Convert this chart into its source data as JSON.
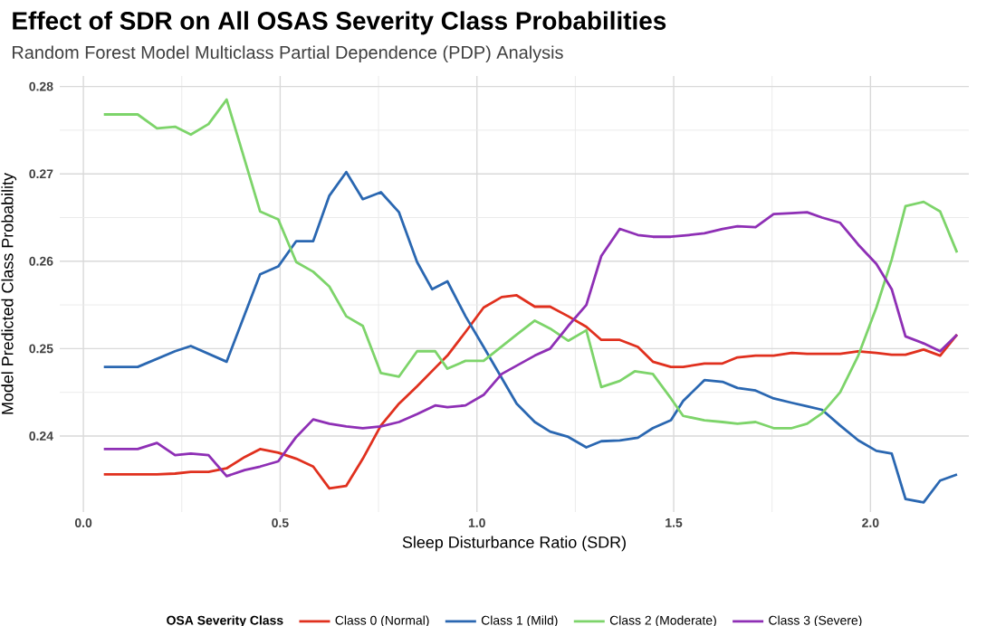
{
  "chart_data": {
    "type": "line",
    "title": "Effect of SDR on All OSAS Severity Class Probabilities",
    "subtitle": "Random Forest Model Multiclass Partial Dependence (PDP) Analysis",
    "xlabel": "Sleep Disturbance Ratio (SDR)",
    "ylabel": "Model Predicted Class Probability",
    "legend_title": "OSA Severity Class",
    "legend": "bottom",
    "grid": true,
    "line_style": "solid",
    "xlim": [
      -0.06,
      2.25
    ],
    "ylim": [
      0.2313,
      0.2812
    ],
    "xticks": [
      {
        "value": 0,
        "label": "0.0"
      },
      {
        "value": 0.5,
        "label": "0.5"
      },
      {
        "value": 1,
        "label": "1.0"
      },
      {
        "value": 1.5,
        "label": "1.5"
      },
      {
        "value": 2,
        "label": "2.0"
      }
    ],
    "yticks": [
      0.24,
      0.25,
      0.26,
      0.27,
      0.28
    ],
    "series": [
      {
        "name": "Class 0 (Normal)",
        "color": "#e0301e",
        "x": [
          0.052,
          0.138,
          0.187,
          0.233,
          0.273,
          0.318,
          0.364,
          0.41,
          0.449,
          0.495,
          0.541,
          0.584,
          0.625,
          0.668,
          0.71,
          0.756,
          0.802,
          0.848,
          0.894,
          0.925,
          0.971,
          1.017,
          1.063,
          1.101,
          1.147,
          1.186,
          1.232,
          1.278,
          1.316,
          1.363,
          1.409,
          1.447,
          1.493,
          1.524,
          1.578,
          1.624,
          1.662,
          1.708,
          1.754,
          1.8,
          1.839,
          1.877,
          1.923,
          1.969,
          2.015,
          2.054,
          2.089,
          2.135,
          2.177,
          2.22
        ],
        "values": [
          0.2356,
          0.2356,
          0.2356,
          0.2357,
          0.2359,
          0.2359,
          0.2363,
          0.2376,
          0.2385,
          0.2381,
          0.2374,
          0.2365,
          0.234,
          0.2343,
          0.2374,
          0.2412,
          0.2437,
          0.2457,
          0.2478,
          0.2492,
          0.2519,
          0.2547,
          0.2559,
          0.2561,
          0.2548,
          0.2548,
          0.2537,
          0.2525,
          0.251,
          0.251,
          0.2502,
          0.2485,
          0.2479,
          0.2479,
          0.2483,
          0.2483,
          0.249,
          0.2492,
          0.2492,
          0.2495,
          0.2494,
          0.2494,
          0.2494,
          0.2497,
          0.2495,
          0.2493,
          0.2493,
          0.2499,
          0.2492,
          0.2516
        ]
      },
      {
        "name": "Class 1 (Mild)",
        "color": "#2a67b1",
        "x": [
          0.052,
          0.138,
          0.233,
          0.273,
          0.364,
          0.449,
          0.495,
          0.541,
          0.584,
          0.625,
          0.668,
          0.71,
          0.756,
          0.802,
          0.848,
          0.886,
          0.925,
          0.971,
          1.017,
          1.101,
          1.147,
          1.186,
          1.232,
          1.278,
          1.316,
          1.363,
          1.409,
          1.447,
          1.493,
          1.524,
          1.578,
          1.624,
          1.662,
          1.708,
          1.754,
          1.8,
          1.839,
          1.877,
          1.923,
          1.969,
          2.015,
          2.054,
          2.089,
          2.135,
          2.177,
          2.22
        ],
        "values": [
          0.2479,
          0.2479,
          0.2497,
          0.2503,
          0.2485,
          0.2585,
          0.2594,
          0.2623,
          0.2623,
          0.2675,
          0.2702,
          0.2671,
          0.2679,
          0.2656,
          0.2599,
          0.2568,
          0.2577,
          0.2537,
          0.2502,
          0.2437,
          0.2416,
          0.2405,
          0.2399,
          0.2387,
          0.2394,
          0.2395,
          0.2398,
          0.2409,
          0.2418,
          0.244,
          0.2464,
          0.2462,
          0.2455,
          0.2452,
          0.2443,
          0.2438,
          0.2434,
          0.243,
          0.2412,
          0.2395,
          0.2383,
          0.238,
          0.2328,
          0.2324,
          0.2349,
          0.2356
        ]
      },
      {
        "name": "Class 2 (Moderate)",
        "color": "#7dd46a",
        "x": [
          0.052,
          0.138,
          0.187,
          0.233,
          0.273,
          0.318,
          0.364,
          0.449,
          0.495,
          0.541,
          0.584,
          0.625,
          0.668,
          0.71,
          0.756,
          0.802,
          0.848,
          0.894,
          0.925,
          0.971,
          1.017,
          1.101,
          1.147,
          1.186,
          1.232,
          1.278,
          1.316,
          1.363,
          1.401,
          1.447,
          1.493,
          1.524,
          1.578,
          1.624,
          1.662,
          1.708,
          1.754,
          1.8,
          1.839,
          1.877,
          1.923,
          1.969,
          2.015,
          2.054,
          2.089,
          2.135,
          2.177,
          2.22
        ],
        "values": [
          0.2768,
          0.2768,
          0.2752,
          0.2754,
          0.2745,
          0.2757,
          0.2785,
          0.2657,
          0.2648,
          0.2599,
          0.2588,
          0.2571,
          0.2537,
          0.2526,
          0.2472,
          0.2468,
          0.2497,
          0.2497,
          0.2477,
          0.2486,
          0.2486,
          0.2516,
          0.2532,
          0.2523,
          0.2509,
          0.2521,
          0.2456,
          0.2463,
          0.2474,
          0.2471,
          0.2443,
          0.2423,
          0.2418,
          0.2416,
          0.2414,
          0.2416,
          0.2409,
          0.2409,
          0.2414,
          0.2426,
          0.245,
          0.2492,
          0.2547,
          0.2602,
          0.2663,
          0.2668,
          0.2657,
          0.261
        ]
      },
      {
        "name": "Class 3 (Severe)",
        "color": "#8e2fb5",
        "x": [
          0.052,
          0.138,
          0.187,
          0.233,
          0.273,
          0.318,
          0.364,
          0.41,
          0.449,
          0.495,
          0.541,
          0.584,
          0.625,
          0.668,
          0.71,
          0.756,
          0.802,
          0.848,
          0.894,
          0.925,
          0.971,
          1.017,
          1.063,
          1.147,
          1.186,
          1.232,
          1.278,
          1.316,
          1.363,
          1.409,
          1.447,
          1.493,
          1.539,
          1.578,
          1.624,
          1.662,
          1.708,
          1.754,
          1.8,
          1.839,
          1.877,
          1.923,
          1.969,
          2.015,
          2.054,
          2.089,
          2.135,
          2.177,
          2.22
        ],
        "values": [
          0.2385,
          0.2385,
          0.2392,
          0.2378,
          0.238,
          0.2378,
          0.2354,
          0.2361,
          0.2365,
          0.2371,
          0.2399,
          0.2419,
          0.2414,
          0.2411,
          0.2409,
          0.2411,
          0.2416,
          0.2425,
          0.2435,
          0.2433,
          0.2435,
          0.2447,
          0.2471,
          0.2492,
          0.25,
          0.2526,
          0.255,
          0.2606,
          0.2637,
          0.263,
          0.2628,
          0.2628,
          0.263,
          0.2632,
          0.2637,
          0.264,
          0.2639,
          0.2654,
          0.2655,
          0.2656,
          0.265,
          0.2644,
          0.2619,
          0.2597,
          0.2568,
          0.2514,
          0.2506,
          0.2497,
          0.2516
        ]
      }
    ]
  }
}
